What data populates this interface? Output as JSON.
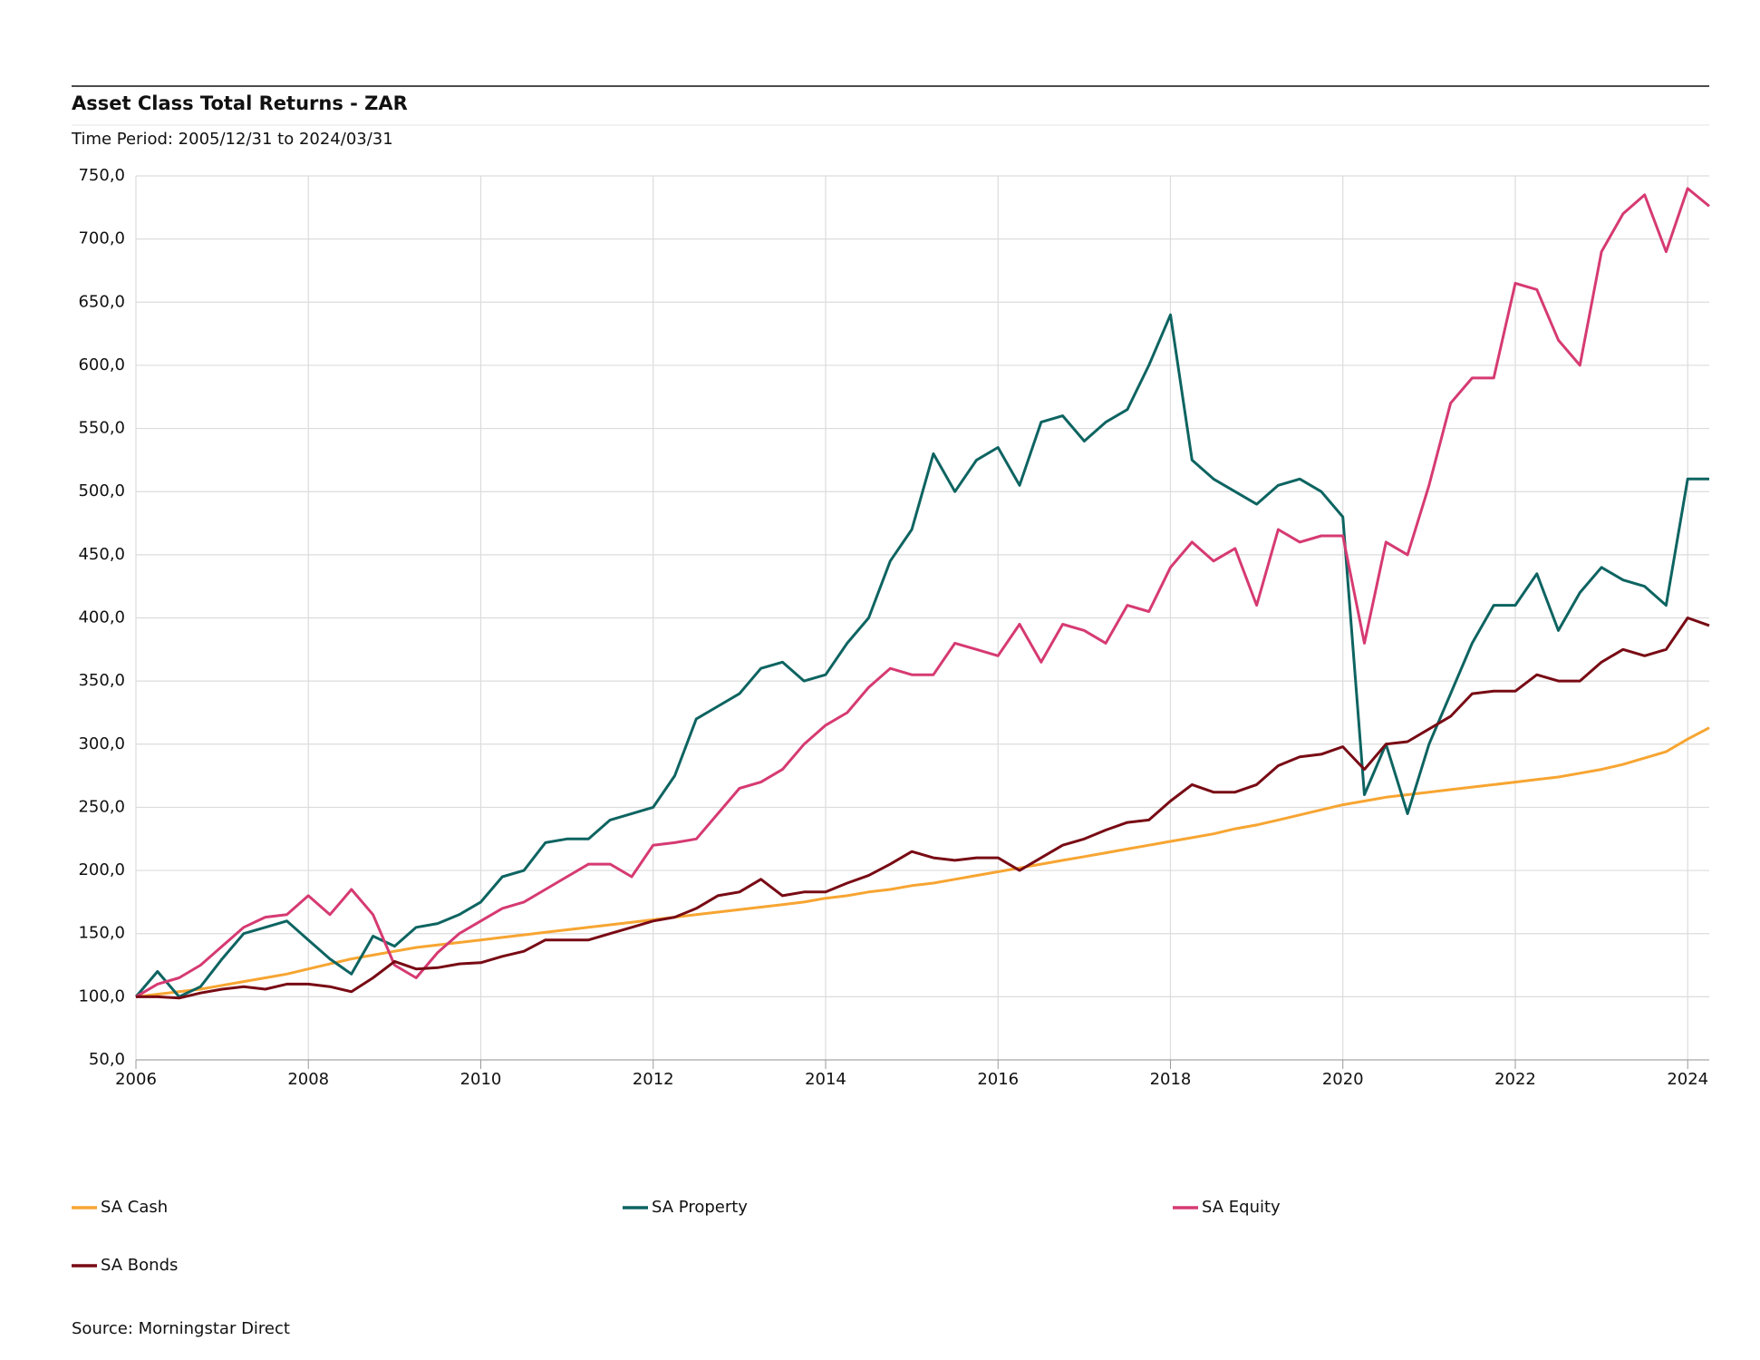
{
  "chart_data": {
    "type": "line",
    "title": "Asset Class Total Returns - ZAR",
    "subtitle": "Time Period: 2005/12/31 to 2024/03/31",
    "source": "Source: Morningstar Direct",
    "x": [
      2006,
      2006.25,
      2006.5,
      2006.75,
      2007,
      2007.25,
      2007.5,
      2007.75,
      2008,
      2008.25,
      2008.5,
      2008.75,
      2009,
      2009.25,
      2009.5,
      2009.75,
      2010,
      2010.25,
      2010.5,
      2010.75,
      2011,
      2011.25,
      2011.5,
      2011.75,
      2012,
      2012.25,
      2012.5,
      2012.75,
      2013,
      2013.25,
      2013.5,
      2013.75,
      2014,
      2014.25,
      2014.5,
      2014.75,
      2015,
      2015.25,
      2015.5,
      2015.75,
      2016,
      2016.25,
      2016.5,
      2016.75,
      2017,
      2017.25,
      2017.5,
      2017.75,
      2018,
      2018.25,
      2018.5,
      2018.75,
      2019,
      2019.25,
      2019.5,
      2019.75,
      2020,
      2020.25,
      2020.5,
      2020.75,
      2021,
      2021.25,
      2021.5,
      2021.75,
      2022,
      2022.25,
      2022.5,
      2022.75,
      2023,
      2023.25,
      2023.5,
      2023.75,
      2024,
      2024.25
    ],
    "xlim": [
      2006,
      2024.25
    ],
    "xticks": [
      2006,
      2008,
      2010,
      2012,
      2014,
      2016,
      2018,
      2020,
      2022,
      2024
    ],
    "ylim": [
      50,
      750
    ],
    "yticks": [
      {
        "value": 50,
        "label": "50,0"
      },
      {
        "value": 100,
        "label": "100,0"
      },
      {
        "value": 150,
        "label": "150,0"
      },
      {
        "value": 200,
        "label": "200,0"
      },
      {
        "value": 250,
        "label": "250,0"
      },
      {
        "value": 300,
        "label": "300,0"
      },
      {
        "value": 350,
        "label": "350,0"
      },
      {
        "value": 400,
        "label": "400,0"
      },
      {
        "value": 450,
        "label": "450,0"
      },
      {
        "value": 500,
        "label": "500,0"
      },
      {
        "value": 550,
        "label": "550,0"
      },
      {
        "value": 600,
        "label": "600,0"
      },
      {
        "value": 650,
        "label": "650,0"
      },
      {
        "value": 700,
        "label": "700,0"
      },
      {
        "value": 750,
        "label": "750,0"
      }
    ],
    "grid": true,
    "legend": "bottom",
    "series": [
      {
        "name": "SA Cash",
        "color": "#f7a532",
        "values": [
          100,
          102,
          104,
          106,
          109,
          112,
          115,
          118,
          122,
          126,
          130,
          133,
          136,
          139,
          141,
          143,
          145,
          147,
          149,
          151,
          153,
          155,
          157,
          159,
          161,
          163,
          165,
          167,
          169,
          171,
          173,
          175,
          178,
          180,
          183,
          185,
          188,
          190,
          193,
          196,
          199,
          202,
          205,
          208,
          211,
          214,
          217,
          220,
          223,
          226,
          229,
          233,
          236,
          240,
          244,
          248,
          252,
          255,
          258,
          260,
          262,
          264,
          266,
          268,
          270,
          272,
          274,
          277,
          280,
          284,
          289,
          294,
          304,
          313
        ]
      },
      {
        "name": "SA Property",
        "color": "#0d6461",
        "values": [
          100,
          120,
          100,
          108,
          130,
          150,
          155,
          160,
          145,
          130,
          118,
          148,
          140,
          155,
          158,
          165,
          175,
          195,
          200,
          222,
          225,
          225,
          240,
          245,
          250,
          275,
          320,
          330,
          340,
          360,
          365,
          350,
          355,
          380,
          400,
          445,
          470,
          530,
          500,
          525,
          535,
          505,
          555,
          560,
          540,
          555,
          565,
          600,
          640,
          525,
          510,
          500,
          490,
          505,
          510,
          500,
          480,
          260,
          300,
          245,
          300,
          340,
          380,
          410,
          410,
          435,
          390,
          420,
          440,
          430,
          425,
          410,
          510,
          510
        ]
      },
      {
        "name": "SA Equity",
        "color": "#d63a72",
        "values": [
          100,
          110,
          115,
          125,
          140,
          155,
          163,
          165,
          180,
          165,
          185,
          165,
          125,
          115,
          135,
          150,
          160,
          170,
          175,
          185,
          195,
          205,
          205,
          195,
          220,
          222,
          225,
          245,
          265,
          270,
          280,
          300,
          315,
          325,
          345,
          360,
          355,
          355,
          380,
          375,
          370,
          395,
          365,
          395,
          390,
          380,
          410,
          405,
          440,
          460,
          445,
          455,
          410,
          470,
          460,
          465,
          465,
          380,
          460,
          450,
          505,
          570,
          590,
          590,
          665,
          660,
          620,
          600,
          690,
          720,
          735,
          690,
          740,
          726
        ]
      },
      {
        "name": "SA Bonds",
        "color": "#780a14",
        "values": [
          100,
          100,
          99,
          103,
          106,
          108,
          106,
          110,
          110,
          108,
          104,
          115,
          128,
          122,
          123,
          126,
          127,
          132,
          136,
          145,
          145,
          145,
          150,
          155,
          160,
          163,
          170,
          180,
          183,
          193,
          180,
          183,
          183,
          190,
          196,
          205,
          215,
          210,
          208,
          210,
          210,
          200,
          210,
          220,
          225,
          232,
          238,
          240,
          255,
          268,
          262,
          262,
          268,
          283,
          290,
          292,
          298,
          280,
          300,
          302,
          312,
          322,
          340,
          342,
          342,
          355,
          350,
          350,
          365,
          375,
          370,
          375,
          400,
          394
        ]
      }
    ]
  }
}
